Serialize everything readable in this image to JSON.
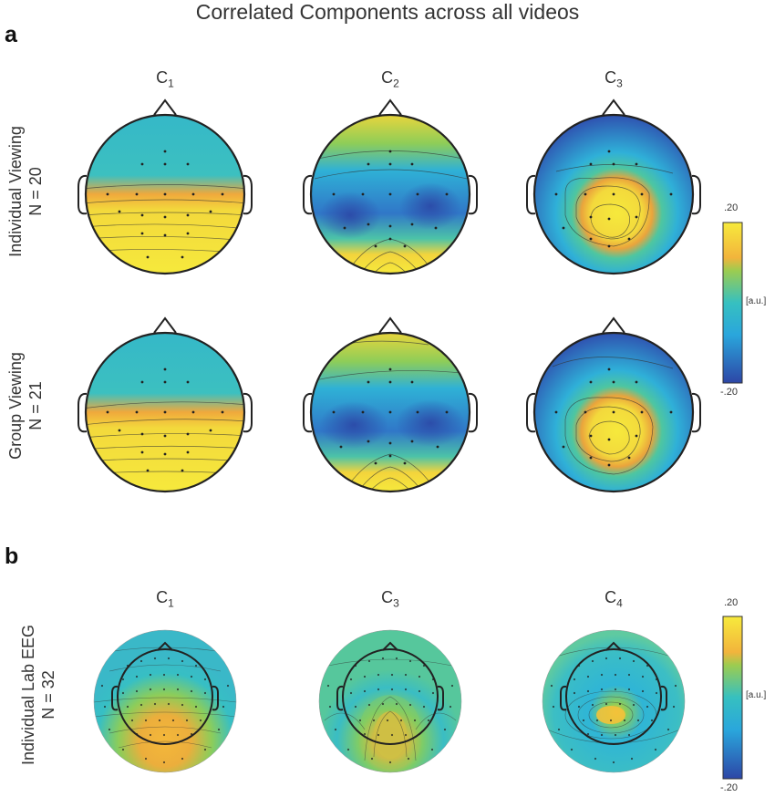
{
  "title": "Correlated Components across all videos",
  "panel_a": {
    "label": "a",
    "columns": [
      {
        "letter": "C",
        "sub": "1"
      },
      {
        "letter": "C",
        "sub": "2"
      },
      {
        "letter": "C",
        "sub": "3"
      }
    ],
    "rows": [
      {
        "line1": "Individual Viewing",
        "line2": "N = 20"
      },
      {
        "line1": "Group Viewing",
        "line2": "N = 21"
      }
    ],
    "colorbar": {
      "max": ".20",
      "min": "-.20",
      "unit": "[a.u.]"
    }
  },
  "panel_b": {
    "label": "b",
    "columns": [
      {
        "letter": "C",
        "sub": "1"
      },
      {
        "letter": "C",
        "sub": "3"
      },
      {
        "letter": "C",
        "sub": "4"
      }
    ],
    "row": {
      "line1": "Individual Lab EEG",
      "line2": "N = 32"
    },
    "colorbar": {
      "max": ".20",
      "min": "-.20",
      "unit": "[a.u.]"
    }
  },
  "colors": {
    "high": "#f5e33a",
    "mid_high": "#f2a93b",
    "mid": "#3dbfb5",
    "low": "#2e56b0",
    "outline": "#222222"
  }
}
